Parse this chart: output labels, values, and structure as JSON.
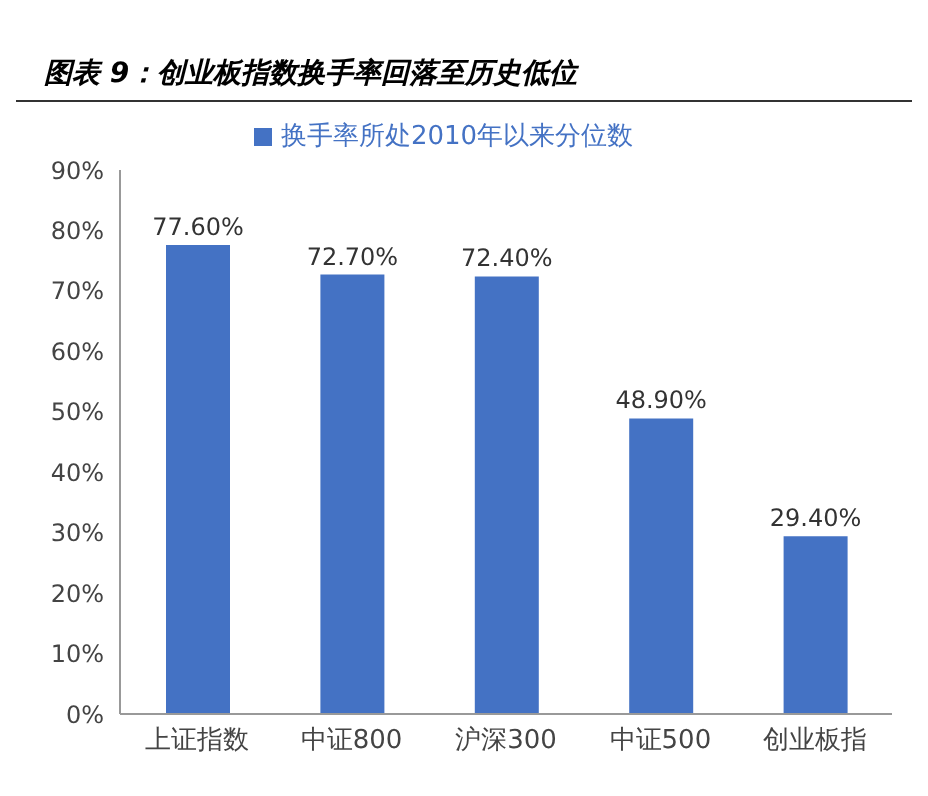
{
  "chart_data": {
    "type": "bar",
    "title": "图表 9：创业板指数换手率回落至历史低位",
    "categories": [
      "上证指数",
      "中证800",
      "沪深300",
      "中证500",
      "创业板指"
    ],
    "series": [
      {
        "name": "换手率所处2010年以来分位数",
        "color": "#4472c4",
        "values": [
          77.6,
          72.7,
          72.4,
          48.9,
          29.4
        ],
        "value_labels": [
          "77.60%",
          "72.70%",
          "72.40%",
          "48.90%",
          "29.40%"
        ]
      }
    ],
    "ylim": [
      0,
      90
    ],
    "yticks": [
      {
        "value": 0,
        "label": "0%"
      },
      {
        "value": 10,
        "label": "10%"
      },
      {
        "value": 20,
        "label": "20%"
      },
      {
        "value": 30,
        "label": "30%"
      },
      {
        "value": 40,
        "label": "40%"
      },
      {
        "value": 50,
        "label": "50%"
      },
      {
        "value": 60,
        "label": "60%"
      },
      {
        "value": 70,
        "label": "70%"
      },
      {
        "value": 80,
        "label": "80%"
      },
      {
        "value": 90,
        "label": "90%"
      }
    ],
    "grid": false,
    "legend": "top"
  }
}
